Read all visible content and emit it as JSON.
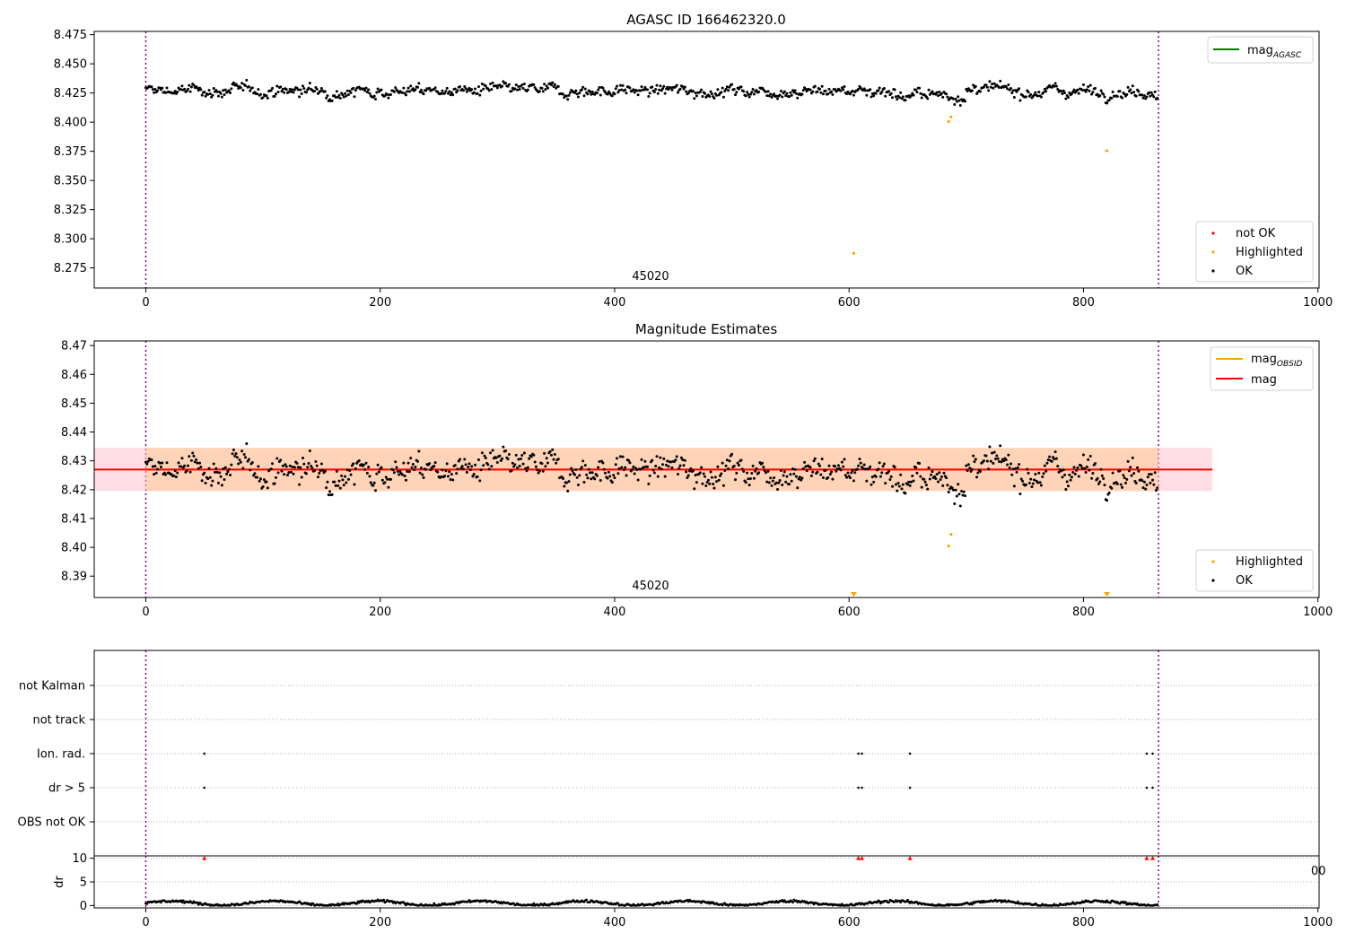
{
  "chart_data": [
    {
      "type": "scatter",
      "title": "AGASC ID 166462320.0",
      "xlim": [
        -44,
        1001
      ],
      "ylim": [
        8.2578,
        8.4778
      ],
      "xticks": [
        "0",
        "200",
        "400",
        "600",
        "800",
        "1000"
      ],
      "yticks": [
        "8.275",
        "8.300",
        "8.325",
        "8.350",
        "8.375",
        "8.400",
        "8.425",
        "8.450",
        "8.475"
      ],
      "obsid_label": "45020",
      "obs_boundaries": [
        0,
        864
      ],
      "reference_line": {
        "name": "mag$_{AGASC}$",
        "label_main": "mag",
        "label_sub": "AGASC",
        "color": "#008000"
      },
      "legend_lines_location": "upper right",
      "legend_points_location": "lower right",
      "series": [
        {
          "name": "not OK",
          "color": "#ff0000",
          "points": []
        },
        {
          "name": "Highlighted",
          "color": "#ffa500",
          "points": [
            [
              685,
              8.4005
            ],
            [
              687,
              8.4045
            ],
            [
              604,
              8.2875
            ],
            [
              820,
              8.3755
            ]
          ]
        },
        {
          "name": "OK",
          "color": "#000000",
          "baseline": 8.427,
          "scatter": 0.006,
          "n": 864
        }
      ]
    },
    {
      "type": "scatter",
      "title": "Magnitude Estimates",
      "xlim": [
        -44,
        1001
      ],
      "ylim": [
        8.3826,
        8.4716
      ],
      "xticks": [
        "0",
        "200",
        "400",
        "600",
        "800",
        "1000"
      ],
      "yticks": [
        "8.39",
        "8.40",
        "8.41",
        "8.42",
        "8.43",
        "8.44",
        "8.45",
        "8.46",
        "8.47"
      ],
      "obsid_label": "45020",
      "mag": {
        "name": "mag",
        "value": 8.427,
        "band": [
          8.4195,
          8.4345
        ],
        "color": "#ff0000",
        "span": [
          -44,
          910
        ]
      },
      "mag_obsid": {
        "name": "mag$_{OBSID}$",
        "label_main": "mag",
        "label_sub": "OBSID",
        "value": 8.427,
        "band": [
          8.4195,
          8.4345
        ],
        "color": "#ffa500",
        "span": [
          0,
          864
        ]
      },
      "legend_lines_location": "upper right",
      "legend_points_location": "lower right",
      "series": [
        {
          "name": "Highlighted",
          "color": "#ffa500",
          "points": [
            [
              685,
              8.4005
            ],
            [
              687,
              8.4045
            ]
          ],
          "below_axis": [
            604,
            820
          ]
        },
        {
          "name": "OK",
          "color": "#000000",
          "baseline": 8.427,
          "scatter": 0.006,
          "n": 864
        }
      ]
    },
    {
      "type": "scatter",
      "categories": [
        "OBS not OK",
        "dr > 5",
        "Ion. rad.",
        "not track",
        "not Kalman"
      ],
      "xlim": [
        -44,
        1001
      ],
      "flag_points": {
        "dr > 5": [
          50,
          608,
          611,
          652,
          854,
          859
        ],
        "Ion. rad.": [
          50,
          608,
          611,
          652,
          854,
          859
        ]
      },
      "flag_color": "#000000"
    },
    {
      "type": "scatter",
      "ylabel": "dr",
      "xlim": [
        -44,
        1001
      ],
      "ylim": [
        -0.5,
        10.5
      ],
      "yticks": [
        "0",
        "5",
        "10"
      ],
      "xticks": [
        "0",
        "200",
        "400",
        "600",
        "800",
        "1000"
      ],
      "overlap_label": "00",
      "series": [
        {
          "name": "dr",
          "color": "#000000",
          "baseline": 0.5,
          "scatter": 0.25,
          "n": 864
        },
        {
          "name": "dr clipped",
          "color": "#ff0000",
          "marker": "triangle",
          "points": [
            [
              50,
              10
            ],
            [
              608,
              10
            ],
            [
              611,
              10
            ],
            [
              652,
              10
            ],
            [
              854,
              10
            ],
            [
              859,
              10
            ]
          ]
        }
      ]
    }
  ]
}
